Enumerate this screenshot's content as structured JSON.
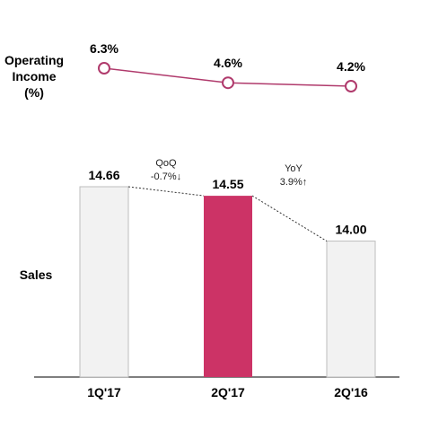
{
  "chart_data": [
    {
      "type": "line",
      "ylabel": [
        "Operating",
        "Income",
        "(%)"
      ],
      "categories": [
        "1Q'17",
        "2Q'17",
        "2Q'16"
      ],
      "values": [
        6.3,
        4.6,
        4.2
      ],
      "data_labels": [
        "6.3%",
        "4.6%",
        "4.2%"
      ],
      "color": "#b03a6c"
    },
    {
      "type": "bar",
      "ylabel": "Sales",
      "categories": [
        "1Q'17",
        "2Q'17",
        "2Q'16"
      ],
      "values": [
        14.66,
        14.55,
        14.0
      ],
      "data_labels": [
        "14.66",
        "14.55",
        "14.00"
      ],
      "colors": [
        "#f2f2f2",
        "#cc3366",
        "#f2f2f2"
      ],
      "annotations": [
        {
          "between": [
            "1Q'17",
            "2Q'17"
          ],
          "lines": [
            "QoQ",
            "-0.7%↓"
          ]
        },
        {
          "between": [
            "2Q'17",
            "2Q'16"
          ],
          "lines": [
            "YoY",
            "3.9%↑"
          ]
        }
      ]
    }
  ]
}
